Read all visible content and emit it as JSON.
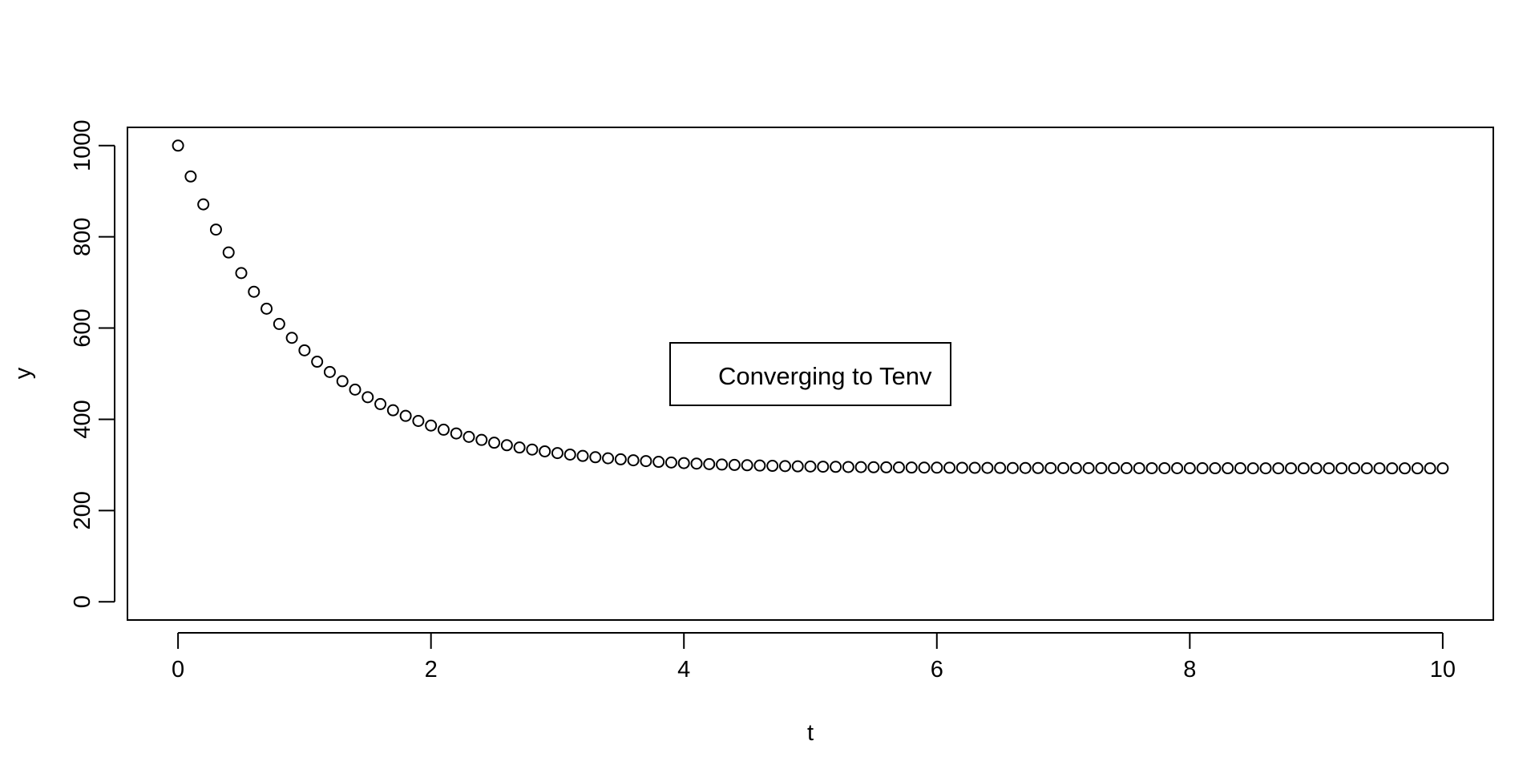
{
  "chart_data": {
    "type": "scatter",
    "title": "",
    "xlabel": "t",
    "ylabel": "y",
    "xlim": [
      -0.4,
      10.4
    ],
    "ylim": [
      -40,
      1040
    ],
    "x_ticks": [
      0,
      2,
      4,
      6,
      8,
      10
    ],
    "y_ticks": [
      0,
      200,
      400,
      600,
      800,
      1000
    ],
    "x_tick_labels": [
      "0",
      "2",
      "4",
      "6",
      "8",
      "10"
    ],
    "y_tick_labels": [
      "0",
      "200",
      "400",
      "600",
      "800",
      "1000"
    ],
    "grid": false,
    "legend": {
      "text": "Converging to Tenv",
      "placement": "center"
    },
    "marker": "open-circle",
    "points": [
      [
        0,
        1000
      ],
      [
        0.1,
        932.4
      ],
      [
        0.2,
        871.2
      ],
      [
        0.3,
        815.9
      ],
      [
        0.4,
        765.8
      ],
      [
        0.5,
        720.6
      ],
      [
        0.6,
        679.6
      ],
      [
        0.7,
        642.5
      ],
      [
        0.8,
        609.0
      ],
      [
        0.9,
        578.6
      ],
      [
        1.0,
        551.2
      ],
      [
        1.1,
        526.3
      ],
      [
        1.2,
        503.8
      ],
      [
        1.3,
        483.5
      ],
      [
        1.4,
        465.1
      ],
      [
        1.5,
        448.5
      ],
      [
        1.6,
        433.4
      ],
      [
        1.7,
        419.8
      ],
      [
        1.8,
        407.5
      ],
      [
        1.9,
        396.4
      ],
      [
        2.0,
        386.3
      ],
      [
        2.1,
        377.2
      ],
      [
        2.2,
        369.0
      ],
      [
        2.3,
        361.5
      ],
      [
        2.4,
        354.8
      ],
      [
        2.5,
        348.7
      ],
      [
        2.6,
        343.2
      ],
      [
        2.7,
        338.2
      ],
      [
        2.8,
        333.7
      ],
      [
        2.9,
        329.7
      ],
      [
        3.0,
        326.0
      ],
      [
        3.1,
        322.7
      ],
      [
        3.2,
        319.7
      ],
      [
        3.3,
        316.9
      ],
      [
        3.4,
        314.5
      ],
      [
        3.5,
        312.3
      ],
      [
        3.6,
        310.2
      ],
      [
        3.7,
        308.4
      ],
      [
        3.8,
        306.8
      ],
      [
        3.9,
        305.3
      ],
      [
        4.0,
        304.0
      ],
      [
        4.1,
        302.9
      ],
      [
        4.2,
        301.8
      ],
      [
        4.3,
        300.8
      ],
      [
        4.4,
        300.0
      ],
      [
        4.5,
        299.3
      ],
      [
        4.6,
        298.6
      ],
      [
        4.7,
        298.0
      ],
      [
        4.8,
        297.4
      ],
      [
        4.9,
        296.9
      ],
      [
        5.0,
        296.5
      ],
      [
        5.1,
        296.1
      ],
      [
        5.2,
        295.8
      ],
      [
        5.3,
        295.5
      ],
      [
        5.4,
        295.2
      ],
      [
        5.5,
        294.9
      ],
      [
        5.6,
        294.7
      ],
      [
        5.7,
        294.5
      ],
      [
        5.8,
        294.3
      ],
      [
        5.9,
        294.1
      ],
      [
        6.0,
        294.0
      ],
      [
        6.1,
        293.8
      ],
      [
        6.2,
        293.7
      ],
      [
        6.3,
        293.6
      ],
      [
        6.4,
        293.5
      ],
      [
        6.5,
        293.4
      ],
      [
        6.6,
        293.3
      ],
      [
        6.7,
        293.3
      ],
      [
        6.8,
        293.2
      ],
      [
        6.9,
        293.1
      ],
      [
        7.0,
        293.1
      ],
      [
        7.1,
        293.0
      ],
      [
        7.2,
        293.0
      ],
      [
        7.3,
        292.9
      ],
      [
        7.4,
        292.9
      ],
      [
        7.5,
        292.9
      ],
      [
        7.6,
        292.8
      ],
      [
        7.7,
        292.8
      ],
      [
        7.8,
        292.8
      ],
      [
        7.9,
        292.8
      ],
      [
        8.0,
        292.7
      ],
      [
        8.1,
        292.7
      ],
      [
        8.2,
        292.7
      ],
      [
        8.3,
        292.7
      ],
      [
        8.4,
        292.7
      ],
      [
        8.5,
        292.6
      ],
      [
        8.6,
        292.6
      ],
      [
        8.7,
        292.6
      ],
      [
        8.8,
        292.6
      ],
      [
        8.9,
        292.6
      ],
      [
        9.0,
        292.6
      ],
      [
        9.1,
        292.6
      ],
      [
        9.2,
        292.6
      ],
      [
        9.3,
        292.6
      ],
      [
        9.4,
        292.6
      ],
      [
        9.5,
        292.6
      ],
      [
        9.6,
        292.5
      ],
      [
        9.7,
        292.5
      ],
      [
        9.8,
        292.5
      ],
      [
        9.9,
        292.5
      ],
      [
        10.0,
        292.5
      ]
    ]
  },
  "colors": {
    "background": "#ffffff",
    "ink": "#000000"
  }
}
